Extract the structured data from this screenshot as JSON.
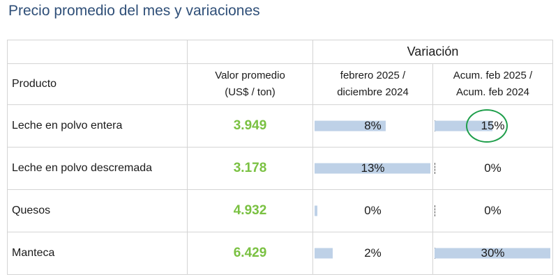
{
  "title": "Precio promedio del mes y variaciones",
  "header": {
    "variacion": "Variación",
    "producto": "Producto",
    "valor_line1": "Valor promedio",
    "valor_line2": "(US$ / ton)",
    "col_mensual_line1": "febrero 2025 /",
    "col_mensual_line2": "diciembre 2024",
    "col_acum_line1": "Acum. feb 2025 /",
    "col_acum_line2": "Acum. feb 2024"
  },
  "colors": {
    "title": "#2f4f78",
    "value_green": "#7ac142",
    "bar_blue": "#bed1e7",
    "highlight_circle": "#1e9e4a"
  },
  "rows": [
    {
      "producto": "Leche en polvo entera",
      "valor": "3.949",
      "mensual": "8%",
      "mensual_value": 8,
      "acum": "15%",
      "acum_value": 15
    },
    {
      "producto": "Leche en polvo descremada",
      "valor": "3.178",
      "mensual": "13%",
      "mensual_value": 13,
      "acum": "0%",
      "acum_value": 0
    },
    {
      "producto": "Quesos",
      "valor": "4.932",
      "mensual": "0%",
      "mensual_value": 0,
      "acum": "0%",
      "acum_value": 0
    },
    {
      "producto": "Manteca",
      "valor": "6.429",
      "mensual": "2%",
      "mensual_value": 2,
      "acum": "30%",
      "acum_value": 30
    }
  ],
  "scale_max": {
    "mensual": 13,
    "acum": 30
  }
}
